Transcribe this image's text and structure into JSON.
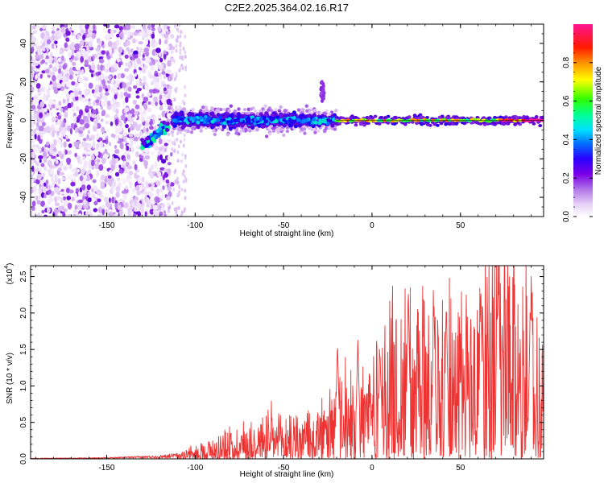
{
  "title": "C2E2.2025.364.02.16.R17",
  "chart_data": [
    {
      "type": "heatmap",
      "name": "spectrogram",
      "xlabel": "Height of straight line (km)",
      "ylabel": "Frequency (Hz)",
      "xlim": [
        -193,
        97
      ],
      "ylim": [
        -50,
        50
      ],
      "xticks": [
        -150,
        -100,
        -50,
        0,
        50
      ],
      "yticks": [
        -40,
        -20,
        0,
        20,
        40
      ],
      "colorbar": {
        "label": "Normalized spectral amplitude",
        "range": [
          0,
          1
        ],
        "ticks": [
          "0.0",
          "0.2",
          "0.4",
          "0.6",
          "0.8"
        ],
        "tick_values": [
          0.0,
          0.2,
          0.4,
          0.6,
          0.8
        ],
        "colormap": [
          "#ffffff",
          "#d9b8f2",
          "#8a2be2",
          "#5a00d8",
          "#0000ff",
          "#00c8ff",
          "#00ff7f",
          "#33ff00",
          "#ffff00",
          "#ff8800",
          "#ff0000",
          "#ff1493"
        ]
      },
      "regions": [
        {
          "desc": "broadband noise",
          "x": [
            -193,
            -113
          ],
          "freq": [
            -50,
            50
          ],
          "amplitude": [
            0.02,
            0.3
          ]
        },
        {
          "desc": "signal onset",
          "x": [
            -130,
            -115
          ],
          "center_freq": -13,
          "amplitude": 0.5
        },
        {
          "desc": "noisy carrier",
          "x": [
            -113,
            -20
          ],
          "center_freq": 0,
          "amplitude": [
            0.3,
            0.5
          ]
        },
        {
          "desc": "burst",
          "x": [
            -29,
            -27
          ],
          "freq": [
            10,
            20
          ],
          "amplitude": 0.15
        },
        {
          "desc": "steady carrier",
          "x": [
            -20,
            97
          ],
          "center_freq": 0,
          "amplitude": [
            0.5,
            1.0
          ]
        }
      ]
    },
    {
      "type": "line",
      "name": "snr",
      "xlabel": "Height of straight line (km)",
      "ylabel": "SNR (10 * v/v)",
      "ymultiplier": "(x10",
      "yexponent": "4",
      "line_color": "#ee3333",
      "xlim": [
        -193,
        97
      ],
      "ylim": [
        0,
        2.65
      ],
      "xticks": [
        -150,
        -100,
        -50,
        0,
        50
      ],
      "yticks": [
        "0.0",
        "0.5",
        "1.0",
        "1.5",
        "2.0",
        "2.5"
      ],
      "ytick_values": [
        0,
        0.5,
        1.0,
        1.5,
        2.0,
        2.5
      ],
      "envelope": {
        "x": [
          -193,
          -150,
          -120,
          -110,
          -100,
          -80,
          -60,
          -50,
          -30,
          -20,
          -10,
          0,
          10,
          20,
          30,
          40,
          50,
          60,
          70,
          80,
          90,
          97
        ],
        "y": [
          0.01,
          0.02,
          0.05,
          0.08,
          0.15,
          0.35,
          0.55,
          0.5,
          0.6,
          0.8,
          1.1,
          1.4,
          1.7,
          2.0,
          2.1,
          2.1,
          1.9,
          2.3,
          2.6,
          2.3,
          2.05,
          1.2
        ]
      },
      "peaks": [
        {
          "x": 20.5,
          "y": 2.35
        },
        {
          "x": 35.0,
          "y": 2.15
        },
        {
          "x": 42.0,
          "y": 2.15
        },
        {
          "x": 61.5,
          "y": 2.38
        },
        {
          "x": 71.5,
          "y": 2.62
        },
        {
          "x": 89.5,
          "y": 2.05
        },
        {
          "x": -19.5,
          "y": 1.6
        },
        {
          "x": -8.0,
          "y": 1.65
        },
        {
          "x": 4.5,
          "y": 1.5
        }
      ]
    }
  ]
}
